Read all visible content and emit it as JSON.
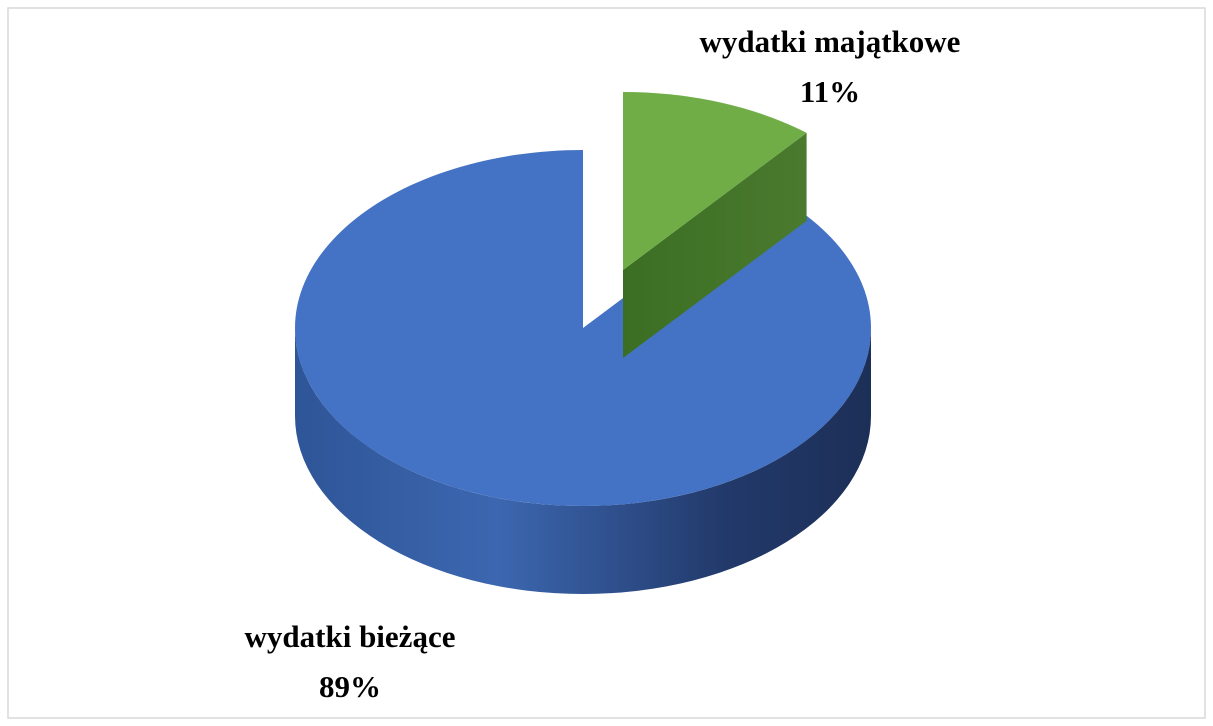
{
  "chart_data": {
    "type": "pie",
    "categories": [
      "wydatki majątkowe",
      "wydatki bieżące"
    ],
    "values": [
      11,
      89
    ],
    "value_labels": [
      "11%",
      "89%"
    ],
    "colors": [
      "#70ad47",
      "#4472c4"
    ]
  }
}
